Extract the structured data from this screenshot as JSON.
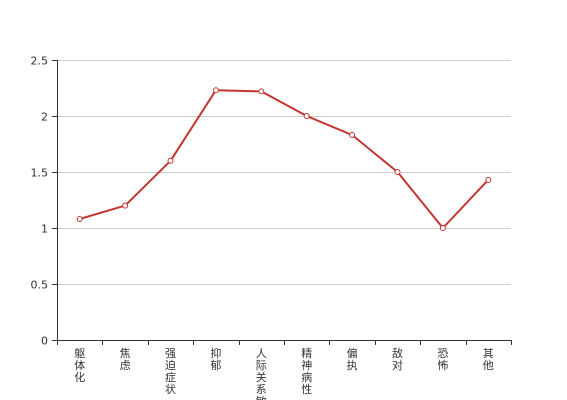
{
  "chart_data": {
    "type": "line",
    "categories": [
      "躯体化",
      "焦虑",
      "强迫症状",
      "抑郁",
      "人际关系敏感",
      "精神病性",
      "偏执",
      "敌对",
      "恐怖",
      "其他"
    ],
    "series": [
      {
        "values": [
          1.08,
          1.2,
          1.6,
          2.23,
          2.22,
          2.0,
          1.83,
          1.5,
          1.0,
          1.43
        ],
        "color": "#c23531"
      }
    ],
    "ylim": [
      0,
      2.5
    ],
    "yticks": [
      "0",
      "0.5",
      "1",
      "1.5",
      "2",
      "2.5"
    ],
    "grid": true,
    "title": "",
    "xlabel": "",
    "ylabel": ""
  }
}
